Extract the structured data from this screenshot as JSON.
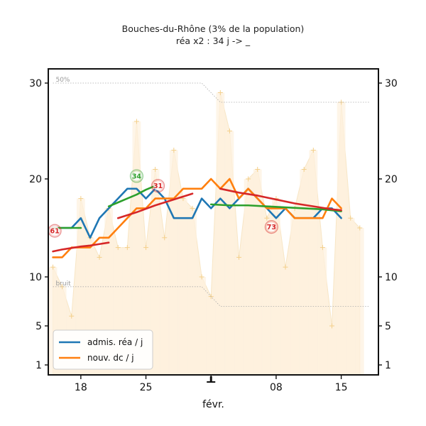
{
  "title": "Bouches-du-Rhône (3% de la population)",
  "subtitle": "réa x2 : 34 j -> _",
  "xlabel": "févr.",
  "ref_labels": {
    "upper": "50%",
    "lower": "bruit"
  },
  "chart_data": {
    "type": "line",
    "title": "Bouches-du-Rhône (3% de la population)",
    "subtitle": "réa x2 : 34 j -> _",
    "xlabel": "févr.",
    "ylabel": "",
    "x_tick_labels": [
      "18",
      "25",
      "",
      "08",
      "15"
    ],
    "x_tick_days": [
      18,
      25,
      32,
      39,
      46
    ],
    "y_ticks": [
      1,
      5,
      10,
      20,
      30
    ],
    "ylim": [
      0,
      32
    ],
    "xlim": [
      14.5,
      50
    ],
    "grid": false,
    "legend_position": "bottom-left",
    "colors": {
      "admis": "#1f77b4",
      "dc": "#ff7f0e",
      "green": "#2ca02c",
      "red": "#d62728",
      "bars": "#fdf1de",
      "points": "#f3cf8a",
      "ref": "#aaaaaa"
    },
    "daily_days": [
      15,
      16,
      17,
      18,
      19,
      20,
      21,
      22,
      23,
      24,
      25,
      26,
      27,
      28,
      29,
      30,
      31,
      32,
      33,
      34,
      35,
      36,
      37,
      38,
      39,
      40,
      41,
      42,
      43,
      44,
      45,
      46,
      47,
      48
    ],
    "daily_values": [
      11,
      9,
      6,
      18,
      14,
      12,
      17,
      13,
      13,
      26,
      13,
      21,
      14,
      23,
      18,
      17,
      10,
      8,
      29,
      25,
      12,
      20,
      21,
      16,
      18,
      11,
      17,
      21,
      23,
      13,
      5,
      28,
      16,
      15
    ],
    "reference_lines": [
      {
        "label": "50%",
        "x": [
          15,
          31,
          33,
          49
        ],
        "y": [
          30,
          30,
          28,
          28
        ]
      },
      {
        "label": "bruit",
        "x": [
          15,
          31,
          33,
          49
        ],
        "y": [
          9,
          9,
          7,
          7
        ]
      }
    ],
    "series": [
      {
        "name": "admis. réa / j",
        "color": "#1f77b4",
        "x": [
          15,
          16,
          17,
          18,
          19,
          20,
          21,
          22,
          23,
          24,
          25,
          26,
          27,
          28,
          29,
          30,
          31,
          32,
          33,
          34,
          35,
          36,
          37,
          38,
          39,
          40,
          41,
          42,
          43,
          44,
          45,
          46
        ],
        "y": [
          15,
          15,
          15,
          16,
          14,
          16,
          17,
          18,
          19,
          19,
          18,
          19,
          18,
          16,
          16,
          16,
          18,
          17,
          18,
          17,
          18,
          19,
          18,
          17,
          16,
          17,
          16,
          16,
          16,
          17,
          17,
          16
        ]
      },
      {
        "name": "nouv. dc / j",
        "color": "#ff7f0e",
        "x": [
          15,
          16,
          17,
          18,
          19,
          20,
          21,
          22,
          23,
          24,
          25,
          26,
          27,
          28,
          29,
          30,
          31,
          32,
          33,
          34,
          35,
          36,
          37,
          38,
          39,
          40,
          41,
          42,
          43,
          44,
          45,
          46
        ],
        "y": [
          12,
          12,
          13,
          13,
          13,
          14,
          14,
          15,
          16,
          17,
          17,
          18,
          18,
          18,
          19,
          19,
          19,
          20,
          19,
          20,
          18,
          19,
          18,
          17,
          17,
          17,
          16,
          16,
          16,
          16,
          18,
          17
        ]
      },
      {
        "x": [
          15,
          18
        ],
        "y": [
          15,
          15
        ],
        "color": "#2ca02c"
      },
      {
        "x": [
          21,
          22,
          23,
          24,
          25,
          26
        ],
        "y": [
          17.2,
          17.6,
          18.0,
          18.4,
          18.9,
          19.3
        ],
        "color": "#2ca02c"
      },
      {
        "x": [
          32,
          34,
          36,
          38,
          40,
          42,
          44,
          46
        ],
        "y": [
          17.4,
          17.3,
          17.3,
          17.2,
          17.1,
          17.0,
          16.9,
          16.7
        ],
        "color": "#2ca02c"
      },
      {
        "x": [
          15,
          16,
          17,
          18,
          19,
          20,
          21
        ],
        "y": [
          12.6,
          12.8,
          12.95,
          13.1,
          13.2,
          13.35,
          13.5
        ],
        "color": "#d62728"
      },
      {
        "x": [
          22,
          24,
          26,
          28,
          30
        ],
        "y": [
          16,
          16.6,
          17.3,
          17.9,
          18.5
        ],
        "color": "#d62728"
      },
      {
        "x": [
          33,
          35,
          37,
          39,
          41,
          43,
          45,
          46
        ],
        "y": [
          19,
          18.6,
          18.3,
          17.9,
          17.5,
          17.2,
          16.9,
          16.8
        ],
        "color": "#d62728"
      }
    ],
    "annotations": [
      {
        "text": "61",
        "x": 15.2,
        "y": 14.7,
        "color": "#d62728"
      },
      {
        "text": "34",
        "x": 24,
        "y": 20.3,
        "color": "#2ca02c"
      },
      {
        "text": "31",
        "x": 26.3,
        "y": 19.3,
        "color": "#d62728"
      },
      {
        "text": "73",
        "x": 38.5,
        "y": 15.1,
        "color": "#d62728"
      }
    ]
  }
}
